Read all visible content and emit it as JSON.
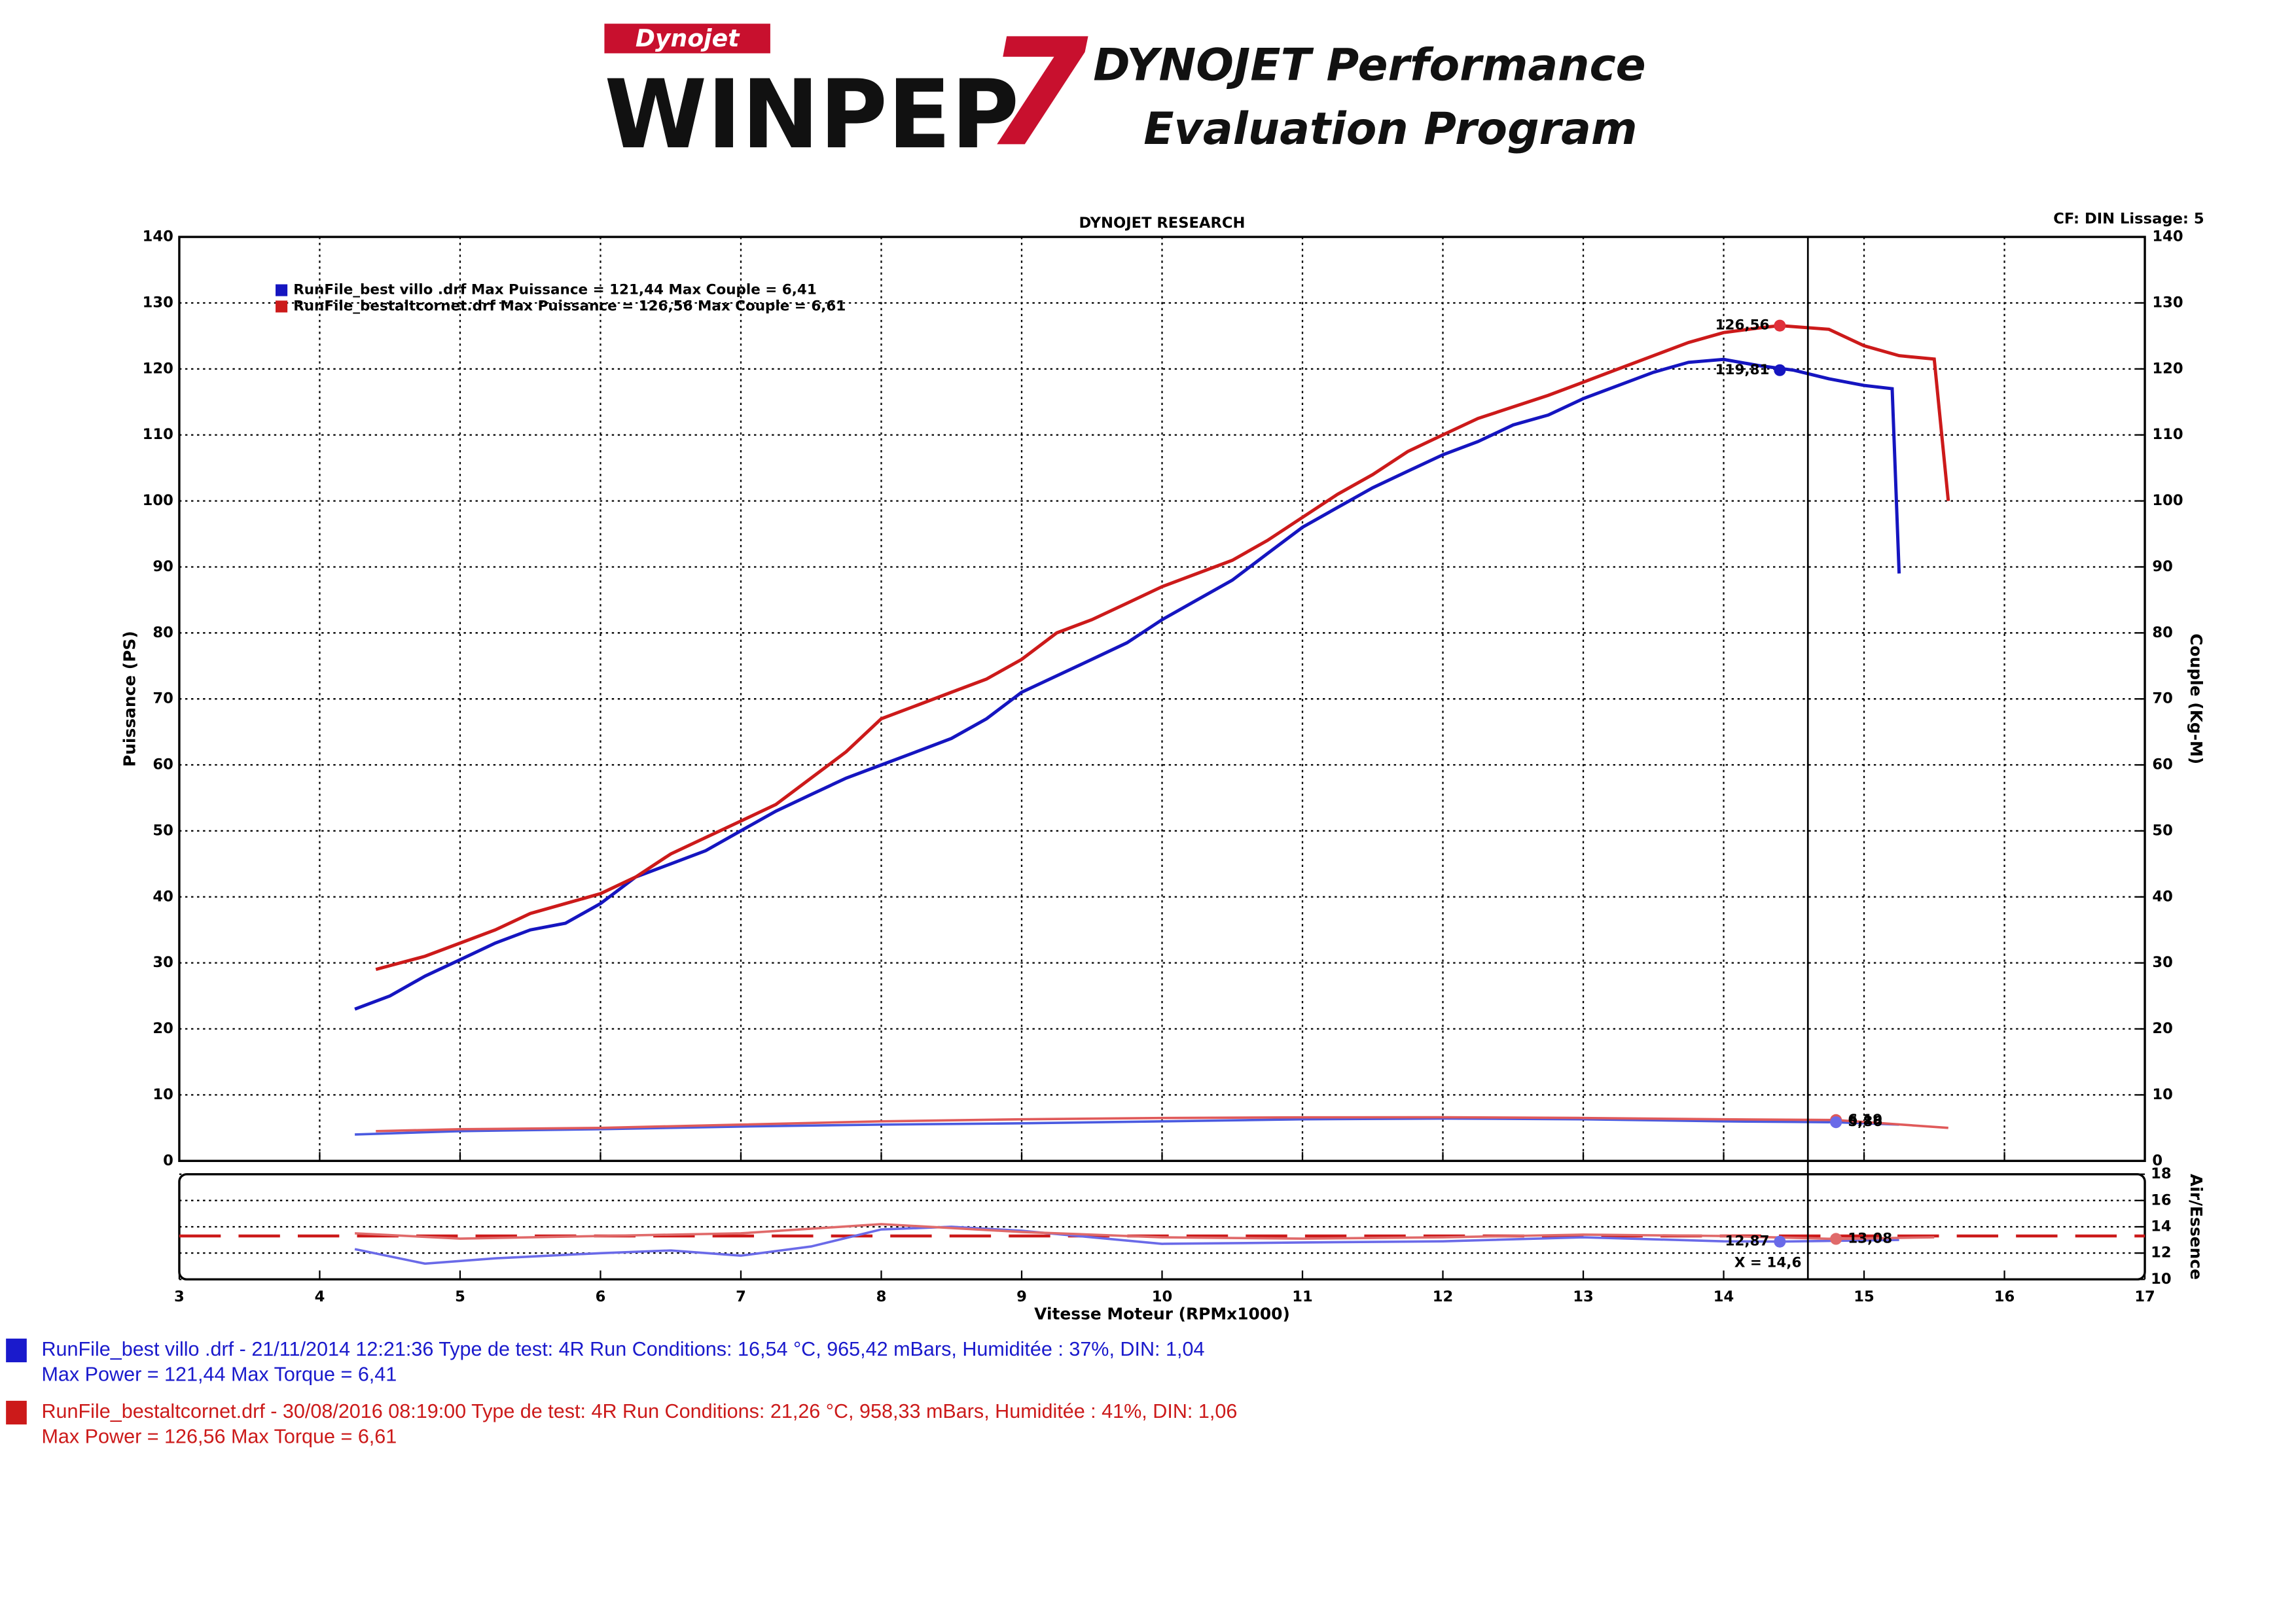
{
  "header": {
    "logo_brand": "Dynojet",
    "logo_product": "WINPEP",
    "logo_version": "7",
    "tagline_1": "DYNOJET Performance",
    "tagline_2": "Evaluation Program"
  },
  "chart_data": [
    {
      "type": "line",
      "title": "DYNOJET RESEARCH",
      "subtitle": "CF: DIN  Lissage: 5",
      "y_label": "Puissance (PS)",
      "y2_label": "Couple (Kg-M)",
      "xlim": [
        3,
        17
      ],
      "xticks": [
        3,
        4,
        5,
        6,
        7,
        8,
        9,
        10,
        11,
        12,
        13,
        14,
        15,
        16,
        17
      ],
      "ylim": [
        0,
        140
      ],
      "yticks": [
        0,
        10,
        20,
        30,
        40,
        50,
        60,
        70,
        80,
        90,
        100,
        110,
        120,
        130,
        140
      ],
      "y2lim": [
        0,
        140
      ],
      "y2ticks": [
        0,
        10,
        20,
        30,
        40,
        50,
        60,
        70,
        80,
        90,
        100,
        110,
        120,
        130,
        140
      ],
      "grid": true,
      "series": [
        {
          "name": "RunFile_best villo .drf Max Puissance = 121,44    Max Couple = 6,41",
          "color": "#1515c0",
          "x": [
            4.25,
            4.5,
            4.75,
            5,
            5.25,
            5.5,
            5.75,
            6,
            6.25,
            6.5,
            6.75,
            7,
            7.25,
            7.5,
            7.75,
            8,
            8.25,
            8.5,
            8.75,
            9,
            9.25,
            9.5,
            9.75,
            10,
            10.25,
            10.5,
            10.75,
            11,
            11.25,
            11.5,
            11.75,
            12,
            12.25,
            12.5,
            12.75,
            13,
            13.25,
            13.5,
            13.75,
            14,
            14.25,
            14.5,
            14.75,
            15,
            15.2,
            15.25
          ],
          "values": [
            23,
            25,
            28,
            30.5,
            33,
            35,
            36,
            39,
            43,
            45,
            47,
            50,
            53,
            55.5,
            58,
            60,
            62,
            64,
            67,
            71,
            73.5,
            76,
            78.5,
            82,
            85,
            88,
            92,
            96,
            99,
            102,
            104.5,
            107,
            109,
            111.5,
            113,
            115.5,
            117.5,
            119.5,
            121,
            121.44,
            120.5,
            119.81,
            118.5,
            117.5,
            117,
            89
          ]
        },
        {
          "name": "RunFile_bestaltcornet.drf Max Puissance = 126,56    Max Couple = 6,61",
          "color": "#cc1a1a",
          "x": [
            4.4,
            4.75,
            5,
            5.25,
            5.5,
            5.75,
            6,
            6.25,
            6.5,
            6.75,
            7,
            7.25,
            7.5,
            7.75,
            8,
            8.25,
            8.5,
            8.75,
            9,
            9.25,
            9.5,
            9.75,
            10,
            10.25,
            10.5,
            10.75,
            11,
            11.25,
            11.5,
            11.75,
            12,
            12.25,
            12.75,
            13,
            13.25,
            13.5,
            13.75,
            14,
            14.25,
            14.4,
            14.75,
            15,
            15.25,
            15.5,
            15.6
          ],
          "values": [
            29,
            31,
            33,
            35,
            37.5,
            39,
            40.5,
            43,
            46.5,
            49,
            51.5,
            54,
            58,
            62,
            67,
            69,
            71,
            73,
            76,
            80,
            82,
            84.5,
            87,
            89,
            91,
            94,
            97.5,
            101,
            104,
            107.5,
            110,
            112.5,
            116,
            118,
            120,
            122,
            124,
            125.5,
            126.2,
            126.56,
            126,
            123.5,
            122,
            121.5,
            100
          ]
        },
        {
          "color": "#4a5ae0",
          "axis": "y2",
          "x": [
            4.25,
            5,
            6,
            7,
            8,
            9,
            10,
            11,
            12,
            13,
            14,
            14.5,
            14.8,
            15.25
          ],
          "values": [
            4,
            4.5,
            4.8,
            5.2,
            5.5,
            5.7,
            6,
            6.3,
            6.41,
            6.3,
            6,
            5.9,
            5.86,
            5.5
          ]
        },
        {
          "color": "#e05a5a",
          "axis": "y2",
          "x": [
            4.4,
            5,
            6,
            7,
            8,
            9,
            10,
            11,
            12,
            13,
            14,
            14.8,
            15.6
          ],
          "values": [
            4.5,
            4.8,
            5,
            5.5,
            6,
            6.3,
            6.5,
            6.6,
            6.61,
            6.5,
            6.3,
            6.19,
            5
          ]
        }
      ],
      "annotations": [
        {
          "x": 14.4,
          "y": 126.56,
          "label": "126,56",
          "color": "#e0303a"
        },
        {
          "x": 14.4,
          "y": 119.81,
          "label": "119,81",
          "color": "#1515c0"
        },
        {
          "x": 14.8,
          "y": 6.19,
          "label": "6,19",
          "color": "#e05a5a"
        },
        {
          "x": 14.8,
          "y": 5.86,
          "label": "5,86",
          "color": "#6a6ae8"
        }
      ]
    },
    {
      "type": "line",
      "x_label": "Vitesse Moteur (RPMx1000)",
      "y2_label": "Air/Essence",
      "xlim": [
        3,
        17
      ],
      "xticks": [
        3,
        4,
        5,
        6,
        7,
        8,
        9,
        10,
        11,
        12,
        13,
        14,
        15,
        16,
        17
      ],
      "ylim": [
        10,
        18
      ],
      "yticks": [
        10,
        12,
        14,
        16,
        18
      ],
      "grid": true,
      "reference_line": {
        "value": 13.3,
        "color": "#cc1a1a"
      },
      "cursor": {
        "x": 14.6,
        "label": "X = 14,6"
      },
      "series": [
        {
          "color": "#6a6ae8",
          "x": [
            4.25,
            4.75,
            5.25,
            6,
            6.5,
            7,
            7.5,
            8,
            8.5,
            9,
            9.5,
            10,
            11,
            12,
            13,
            14,
            14.4,
            15.25
          ],
          "values": [
            12.3,
            11.2,
            11.6,
            12,
            12.2,
            11.8,
            12.5,
            13.8,
            14,
            13.7,
            13.2,
            12.7,
            12.8,
            12.9,
            13.2,
            12.9,
            12.87,
            13
          ]
        },
        {
          "color": "#e06a6a",
          "x": [
            4.25,
            5,
            6,
            7,
            8,
            9,
            10,
            11,
            12,
            13,
            14,
            14.8,
            15.5
          ],
          "values": [
            13.5,
            13.1,
            13.3,
            13.5,
            14.2,
            13.6,
            13.2,
            13.1,
            13.2,
            13.4,
            13.3,
            13.08,
            13.2
          ]
        }
      ],
      "annotations": [
        {
          "x": 14.4,
          "y": 12.87,
          "label": "12,87",
          "color": "#6a6ae8"
        },
        {
          "x": 14.8,
          "y": 13.08,
          "label": "13,08",
          "color": "#e06a6a"
        }
      ]
    }
  ],
  "footer": [
    {
      "color": "#1a1acc",
      "line_1": "RunFile_best villo .drf - 21/11/2014 12:21:36  Type de test: 4R  Run Conditions: 16,54 °C, 965,42 mBars,  Humiditée : 37%, DIN: 1,04",
      "line_2": "Max Power = 121,44  Max Torque = 6,41"
    },
    {
      "color": "#cc1a1a",
      "line_1": "RunFile_bestaltcornet.drf - 30/08/2016 08:19:00  Type de test: 4R  Run Conditions: 21,26 °C, 958,33 mBars,  Humiditée : 41%, DIN: 1,06",
      "line_2": "Max Power = 126,56  Max Torque = 6,61"
    }
  ]
}
